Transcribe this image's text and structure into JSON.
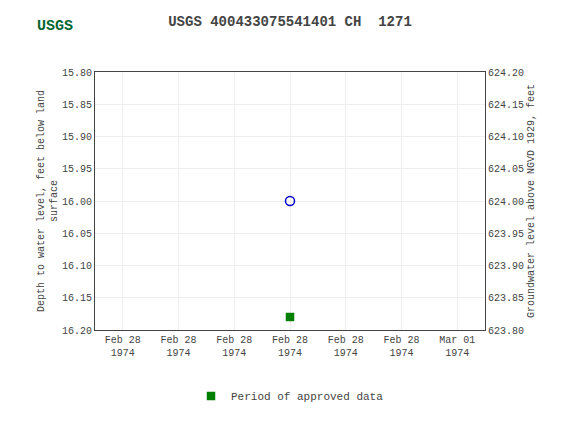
{
  "chart_data": {
    "type": "scatter",
    "title": "USGS 400433075541401 CH  1271",
    "annotations": [
      "USGS"
    ],
    "y_label": "Depth to water level, feet below land\nsurface",
    "y2_label": "Groundwater level above NGVD 1929, feet",
    "categories": [
      "Feb 28\n1974",
      "Feb 28\n1974",
      "Feb 28\n1974",
      "Feb 28\n1974",
      "Feb 28\n1974",
      "Feb 28\n1974",
      "Mar 01\n1974"
    ],
    "series": [
      {
        "color": "#0000cc",
        "marker": "circle-open",
        "values": [
          null,
          null,
          null,
          16.0,
          null,
          null,
          null
        ]
      },
      {
        "name": "Period of approved data",
        "color": "#008000",
        "marker": "square",
        "values": [
          null,
          null,
          null,
          16.18,
          null,
          null,
          null
        ]
      }
    ],
    "ylim": [
      16.2,
      15.8
    ],
    "yticks": [
      {
        "value": 15.8,
        "label": "15.80"
      },
      {
        "value": 15.85,
        "label": "15.85"
      },
      {
        "value": 15.9,
        "label": "15.90"
      },
      {
        "value": 15.95,
        "label": "15.95"
      },
      {
        "value": 16.0,
        "label": "16.00"
      },
      {
        "value": 16.05,
        "label": "16.05"
      },
      {
        "value": 16.1,
        "label": "16.10"
      },
      {
        "value": 16.15,
        "label": "16.15"
      },
      {
        "value": 16.2,
        "label": "16.20"
      }
    ],
    "y2lim": [
      623.8,
      624.2
    ],
    "y2ticks": [
      {
        "value": 624.2,
        "label": "624.20"
      },
      {
        "value": 624.15,
        "label": "624.15"
      },
      {
        "value": 624.1,
        "label": "624.10"
      },
      {
        "value": 624.05,
        "label": "624.05"
      },
      {
        "value": 624.0,
        "label": "624.00"
      },
      {
        "value": 623.95,
        "label": "623.95"
      },
      {
        "value": 623.9,
        "label": "623.90"
      },
      {
        "value": 623.85,
        "label": "623.85"
      },
      {
        "value": 623.8,
        "label": "623.80"
      }
    ],
    "grid": true,
    "legend": "bottom"
  }
}
